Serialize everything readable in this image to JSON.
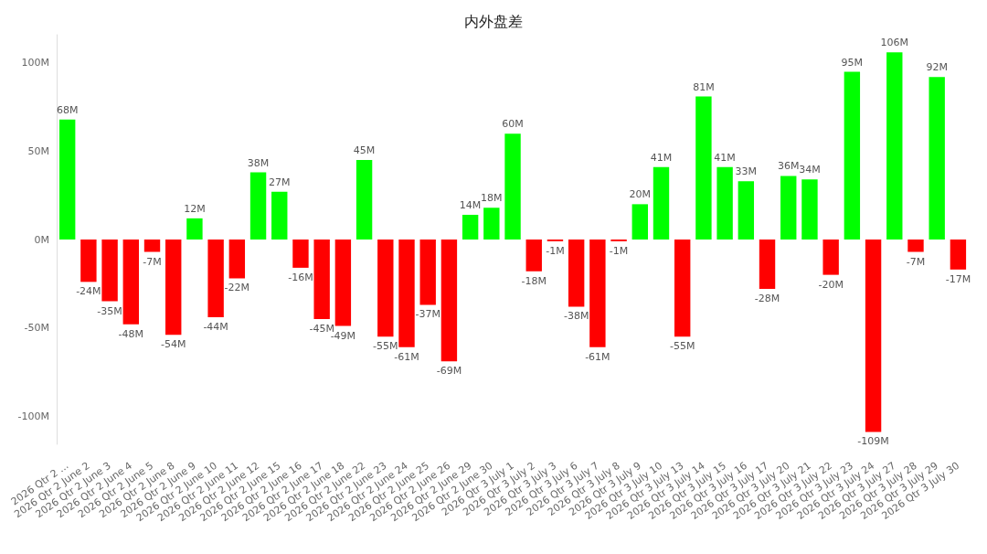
{
  "chart_data": {
    "type": "bar",
    "title": "内外盘差",
    "categories": [
      "2026 Qtr 2 ...",
      "2026 Qtr 2 June 2",
      "2026 Qtr 2 June 3",
      "2026 Qtr 2 June 4",
      "2026 Qtr 2 June 5",
      "2026 Qtr 2 June 8",
      "2026 Qtr 2 June 9",
      "2026 Qtr 2 June 10",
      "2026 Qtr 2 June 11",
      "2026 Qtr 2 June 12",
      "2026 Qtr 2 June 15",
      "2026 Qtr 2 June 16",
      "2026 Qtr 2 June 17",
      "2026 Qtr 2 June 18",
      "2026 Qtr 2 June 22",
      "2026 Qtr 2 June 23",
      "2026 Qtr 2 June 24",
      "2026 Qtr 2 June 25",
      "2026 Qtr 2 June 26",
      "2026 Qtr 2 June 29",
      "2026 Qtr 2 June 30",
      "2026 Qtr 3 July 1",
      "2026 Qtr 3 July 2",
      "2026 Qtr 3 July 3",
      "2026 Qtr 3 July 6",
      "2026 Qtr 3 July 7",
      "2026 Qtr 3 July 8",
      "2026 Qtr 3 July 9",
      "2026 Qtr 3 July 10",
      "2026 Qtr 3 July 13",
      "2026 Qtr 3 July 14",
      "2026 Qtr 3 July 15",
      "2026 Qtr 3 July 16",
      "2026 Qtr 3 July 17",
      "2026 Qtr 3 July 20",
      "2026 Qtr 3 July 21",
      "2026 Qtr 3 July 22",
      "2026 Qtr 3 July 23",
      "2026 Qtr 3 July 24",
      "2026 Qtr 3 July 27",
      "2026 Qtr 3 July 28",
      "2026 Qtr 3 July 29",
      "2026 Qtr 3 July 30"
    ],
    "values": [
      68,
      -24,
      -35,
      -48,
      -7,
      -54,
      12,
      -44,
      -22,
      38,
      27,
      -16,
      -45,
      -49,
      45,
      -55,
      -61,
      -37,
      -69,
      14,
      18,
      60,
      -18,
      -1,
      -38,
      -61,
      -1,
      20,
      41,
      -55,
      81,
      41,
      33,
      -28,
      36,
      34,
      -20,
      95,
      -109,
      106,
      -7,
      92,
      -17
    ],
    "value_labels": [
      "68M",
      "-24M",
      "-35M",
      "-48M",
      "-7M",
      "-54M",
      "12M",
      "-44M",
      "-22M",
      "38M",
      "27M",
      "-16M",
      "-45M",
      "-49M",
      "45M",
      "-55M",
      "-61M",
      "-37M",
      "-69M",
      "14M",
      "18M",
      "60M",
      "-18M",
      "-1M",
      "-38M",
      "-61M",
      "-1M",
      "20M",
      "41M",
      "-55M",
      "81M",
      "41M",
      "33M",
      "-28M",
      "36M",
      "34M",
      "-20M",
      "95M",
      "-109M",
      "106M",
      "-7M",
      "92M",
      "-17M"
    ],
    "colors": [
      "#00ff00",
      "#ff0000",
      "#ff0000",
      "#ff0000",
      "#ff0000",
      "#ff0000",
      "#00ff00",
      "#ff0000",
      "#ff0000",
      "#00ff00",
      "#00ff00",
      "#ff0000",
      "#ff0000",
      "#ff0000",
      "#00ff00",
      "#ff0000",
      "#ff0000",
      "#ff0000",
      "#ff0000",
      "#00ff00",
      "#00ff00",
      "#00ff00",
      "#ff0000",
      "#ff0000",
      "#ff0000",
      "#ff0000",
      "#ff0000",
      "#00ff00",
      "#00ff00",
      "#ff0000",
      "#00ff00",
      "#00ff00",
      "#00ff00",
      "#ff0000",
      "#00ff00",
      "#00ff00",
      "#ff0000",
      "#00ff00",
      "#ff0000",
      "#00ff00",
      "#ff0000",
      "#00ff00",
      "#ff0000"
    ],
    "ylim": [
      -116,
      116
    ],
    "yticks": [
      {
        "value": -100,
        "label": "-100M"
      },
      {
        "value": -50,
        "label": "-50M"
      },
      {
        "value": 0,
        "label": "0M"
      },
      {
        "value": 50,
        "label": "50M"
      },
      {
        "value": 100,
        "label": "100M"
      }
    ],
    "grid": false
  }
}
